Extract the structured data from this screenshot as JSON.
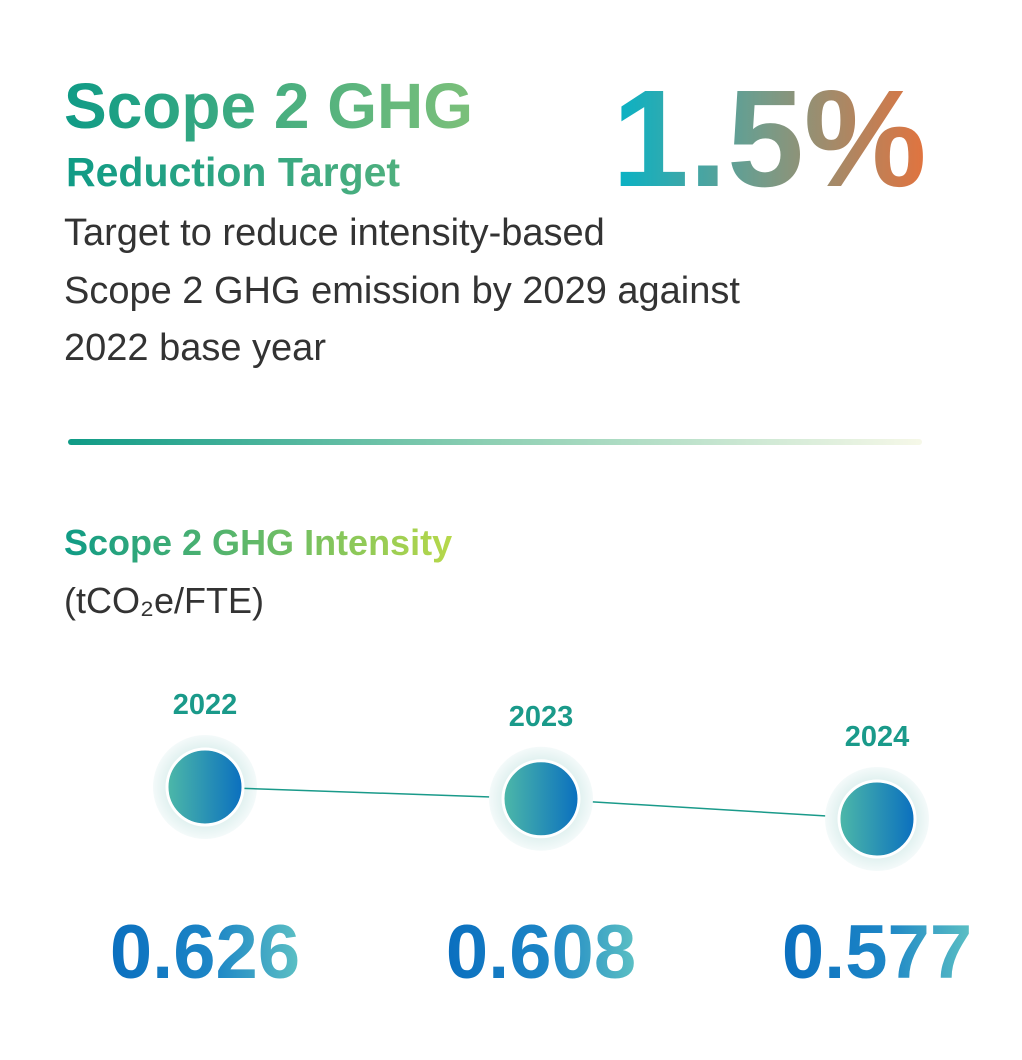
{
  "header": {
    "title": "Scope 2 GHG",
    "subtitle": "Reduction Target",
    "highlight": "1.5%",
    "description": [
      "Target to reduce intensity-based",
      "Scope 2 GHG emission by 2029 against",
      "2022 base year"
    ]
  },
  "chart_data": {
    "type": "line",
    "title": "Scope 2 GHG Intensity",
    "unit": "(tCO₂e/FTE)",
    "categories": [
      "2022",
      "2023",
      "2024"
    ],
    "values": [
      0.626,
      0.608,
      0.577
    ],
    "color": "#1a9a8a"
  }
}
